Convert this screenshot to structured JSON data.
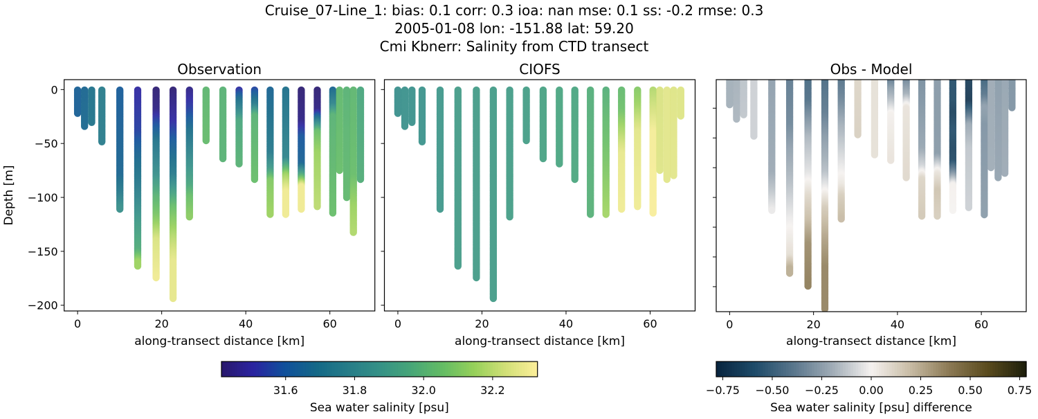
{
  "figure": {
    "title_lines": [
      "Cruise_07-Line_1: bias: 0.1  corr: 0.3  ioa: nan  mse: 0.1  ss: -0.2  rmse: 0.3",
      "2005-01-08 lon: -151.88 lat: 59.20",
      "Cmi Kbnerr: Salinity from CTD transect"
    ]
  },
  "chart_data": [
    {
      "type": "scatter",
      "title": "Observation",
      "xlabel": "along-transect distance [km]",
      "ylabel": "Depth [m]",
      "xlim": [
        -3.2,
        70.7
      ],
      "ylim": [
        -205.3,
        9.2
      ],
      "xticks": [
        0,
        20,
        40,
        60
      ],
      "xtick_labels": [
        "0",
        "20",
        "40",
        "60"
      ],
      "yticks": [
        0,
        -50,
        -100,
        -150,
        -200
      ],
      "ytick_labels": [
        "0",
        "−50",
        "−100",
        "−150",
        "−200"
      ],
      "colormap": "haline",
      "clim": [
        31.414,
        32.33
      ],
      "casts": [
        {
          "distance_km": 0.0,
          "profile": [
            [
              0,
              31.64
            ],
            [
              22.5,
              31.64
            ]
          ]
        },
        {
          "distance_km": 1.65,
          "profile": [
            [
              0,
              31.66
            ],
            [
              34.6,
              31.67
            ]
          ]
        },
        {
          "distance_km": 3.35,
          "profile": [
            [
              0,
              31.71
            ],
            [
              30.6,
              31.72
            ]
          ]
        },
        {
          "distance_km": 5.77,
          "profile": [
            [
              0,
              31.76
            ],
            [
              49,
              31.76
            ]
          ]
        },
        {
          "distance_km": 10.05,
          "profile": [
            [
              0,
              31.62
            ],
            [
              80,
              31.66
            ],
            [
              95,
              31.74
            ],
            [
              112,
              31.86
            ]
          ]
        },
        {
          "distance_km": 14.3,
          "profile": [
            [
              0,
              31.5
            ],
            [
              40,
              31.55
            ],
            [
              60,
              31.65
            ],
            [
              90,
              31.75
            ],
            [
              120,
              31.88
            ],
            [
              150,
              31.98
            ],
            [
              160,
              32.15
            ],
            [
              164,
              32.15
            ]
          ]
        },
        {
          "distance_km": 18.68,
          "profile": [
            [
              0,
              31.42
            ],
            [
              20,
              31.45
            ],
            [
              30,
              31.55
            ],
            [
              50,
              31.72
            ],
            [
              80,
              31.85
            ],
            [
              100,
              32.0
            ],
            [
              120,
              32.1
            ],
            [
              140,
              32.25
            ],
            [
              174.5,
              32.3
            ]
          ]
        },
        {
          "distance_km": 22.7,
          "profile": [
            [
              0,
              31.42
            ],
            [
              30,
              31.5
            ],
            [
              50,
              31.62
            ],
            [
              80,
              31.75
            ],
            [
              95,
              31.9
            ],
            [
              110,
              32.05
            ],
            [
              140,
              32.2
            ],
            [
              160,
              32.28
            ],
            [
              194,
              32.28
            ]
          ]
        },
        {
          "distance_km": 26.6,
          "profile": [
            [
              0,
              31.45
            ],
            [
              20,
              31.55
            ],
            [
              40,
              31.7
            ],
            [
              70,
              31.85
            ],
            [
              90,
              31.95
            ],
            [
              100,
              32.05
            ],
            [
              119,
              32.12
            ]
          ]
        },
        {
          "distance_km": 30.55,
          "profile": [
            [
              0,
              32.02
            ],
            [
              47.5,
              32.04
            ]
          ]
        },
        {
          "distance_km": 34.56,
          "profile": [
            [
              0,
              32.0
            ],
            [
              64.5,
              32.0
            ]
          ]
        },
        {
          "distance_km": 38.4,
          "profile": [
            [
              0,
              31.5
            ],
            [
              10,
              31.68
            ],
            [
              20,
              31.8
            ],
            [
              30,
              31.95
            ],
            [
              70,
              32.0
            ]
          ]
        },
        {
          "distance_km": 42.1,
          "profile": [
            [
              0,
              31.55
            ],
            [
              15,
              31.75
            ],
            [
              25,
              32.0
            ],
            [
              84,
              32.05
            ]
          ]
        },
        {
          "distance_km": 45.8,
          "profile": [
            [
              0,
              31.65
            ],
            [
              60,
              31.75
            ],
            [
              75,
              31.9
            ],
            [
              85,
              32.1
            ],
            [
              116,
              32.15
            ]
          ]
        },
        {
          "distance_km": 49.5,
          "profile": [
            [
              0,
              31.7
            ],
            [
              65,
              31.8
            ],
            [
              80,
              32.15
            ],
            [
              95,
              32.3
            ],
            [
              116.7,
              32.3
            ]
          ]
        },
        {
          "distance_km": 53.2,
          "profile": [
            [
              0,
              31.42
            ],
            [
              30,
              31.45
            ],
            [
              45,
              31.6
            ],
            [
              70,
              31.65
            ],
            [
              80,
              31.95
            ],
            [
              90,
              32.3
            ],
            [
              111,
              32.3
            ]
          ]
        },
        {
          "distance_km": 57.0,
          "profile": [
            [
              0,
              31.42
            ],
            [
              20,
              31.45
            ],
            [
              30,
              31.75
            ],
            [
              40,
              32.05
            ],
            [
              60,
              32.15
            ],
            [
              109,
              32.2
            ]
          ]
        },
        {
          "distance_km": 60.7,
          "profile": [
            [
              0,
              31.65
            ],
            [
              15,
              31.8
            ],
            [
              25,
              32.0
            ],
            [
              115,
              32.05
            ]
          ]
        },
        {
          "distance_km": 62.3,
          "profile": [
            [
              0,
              32.03
            ],
            [
              75.4,
              32.05
            ]
          ]
        },
        {
          "distance_km": 64.0,
          "profile": [
            [
              0,
              32.0
            ],
            [
              60,
              32.02
            ],
            [
              101,
              32.03
            ]
          ]
        },
        {
          "distance_km": 65.6,
          "profile": [
            [
              0,
              32.02
            ],
            [
              80,
              32.05
            ],
            [
              110,
              32.15
            ],
            [
              132.7,
              32.18
            ]
          ]
        },
        {
          "distance_km": 67.3,
          "profile": [
            [
              0,
              31.95
            ],
            [
              84,
              31.98
            ]
          ]
        }
      ]
    },
    {
      "type": "scatter",
      "title": "CIOFS",
      "xlabel": "along-transect distance [km]",
      "xlim": [
        -3.2,
        70.7
      ],
      "ylim": [
        -205.3,
        9.2
      ],
      "xticks": [
        0,
        20,
        40,
        60
      ],
      "xtick_labels": [
        "0",
        "20",
        "40",
        "60"
      ],
      "yticks": [
        0,
        -50,
        -100,
        -150,
        -200
      ],
      "colormap": "haline",
      "clim": [
        31.414,
        32.33
      ],
      "casts": [
        {
          "distance_km": 0.0,
          "profile": [
            [
              0,
              31.84
            ],
            [
              22.5,
              31.84
            ]
          ]
        },
        {
          "distance_km": 1.65,
          "profile": [
            [
              0,
              31.85
            ],
            [
              34.6,
              31.85
            ]
          ]
        },
        {
          "distance_km": 3.35,
          "profile": [
            [
              0,
              31.85
            ],
            [
              30.6,
              31.85
            ]
          ]
        },
        {
          "distance_km": 5.77,
          "profile": [
            [
              0,
              31.86
            ],
            [
              49,
              31.86
            ]
          ]
        },
        {
          "distance_km": 10.05,
          "profile": [
            [
              0,
              31.88
            ],
            [
              112,
              31.88
            ]
          ]
        },
        {
          "distance_km": 14.3,
          "profile": [
            [
              0,
              31.9
            ],
            [
              164,
              31.9
            ]
          ]
        },
        {
          "distance_km": 18.68,
          "profile": [
            [
              0,
              31.9
            ],
            [
              174.5,
              31.9
            ]
          ]
        },
        {
          "distance_km": 22.7,
          "profile": [
            [
              0,
              31.9
            ],
            [
              194,
              31.9
            ]
          ]
        },
        {
          "distance_km": 26.6,
          "profile": [
            [
              0,
              31.9
            ],
            [
              119,
              31.91
            ]
          ]
        },
        {
          "distance_km": 30.55,
          "profile": [
            [
              0,
              31.91
            ],
            [
              47.5,
              31.91
            ]
          ]
        },
        {
          "distance_km": 34.56,
          "profile": [
            [
              0,
              31.93
            ],
            [
              64.5,
              31.93
            ]
          ]
        },
        {
          "distance_km": 38.4,
          "profile": [
            [
              0,
              31.94
            ],
            [
              70,
              31.94
            ]
          ]
        },
        {
          "distance_km": 42.1,
          "profile": [
            [
              0,
              31.94
            ],
            [
              84,
              31.95
            ]
          ]
        },
        {
          "distance_km": 45.8,
          "profile": [
            [
              0,
              31.98
            ],
            [
              116,
              31.99
            ]
          ]
        },
        {
          "distance_km": 49.5,
          "profile": [
            [
              0,
              31.98
            ],
            [
              30,
              32.03
            ],
            [
              80,
              32.1
            ],
            [
              116.7,
              32.16
            ]
          ]
        },
        {
          "distance_km": 53.2,
          "profile": [
            [
              0,
              32.03
            ],
            [
              20,
              32.06
            ],
            [
              35,
              32.15
            ],
            [
              60,
              32.28
            ],
            [
              111,
              32.3
            ]
          ]
        },
        {
          "distance_km": 57.0,
          "profile": [
            [
              0,
              32.1
            ],
            [
              15,
              32.15
            ],
            [
              40,
              32.27
            ],
            [
              109,
              32.3
            ]
          ]
        },
        {
          "distance_km": 60.7,
          "profile": [
            [
              0,
              32.18
            ],
            [
              20,
              32.24
            ],
            [
              40,
              32.31
            ],
            [
              115,
              32.32
            ]
          ]
        },
        {
          "distance_km": 62.3,
          "profile": [
            [
              0,
              32.25
            ],
            [
              75.4,
              32.26
            ]
          ]
        },
        {
          "distance_km": 64.0,
          "profile": [
            [
              0,
              32.27
            ],
            [
              84,
              32.27
            ]
          ]
        },
        {
          "distance_km": 65.6,
          "profile": [
            [
              0,
              32.26
            ],
            [
              80,
              32.27
            ]
          ]
        },
        {
          "distance_km": 67.3,
          "profile": [
            [
              0,
              32.26
            ],
            [
              25,
              32.26
            ]
          ]
        }
      ]
    },
    {
      "type": "scatter",
      "title": "Obs - Model",
      "xlabel": "along-transect distance [km]",
      "xlim": [
        -3.2,
        70.7
      ],
      "ylim": [
        -196,
        -1
      ],
      "xticks": [
        0,
        20,
        40,
        60
      ],
      "xtick_labels": [
        "0",
        "20",
        "40",
        "60"
      ],
      "yticks": [
        -25,
        -50,
        -75,
        -100,
        -125,
        -150,
        -175
      ],
      "colormap": "diff",
      "clim": [
        -0.783,
        0.783
      ]
    }
  ],
  "colorbars": [
    {
      "label": "Sea water salinity [psu]",
      "colormap": "haline",
      "range": [
        31.414,
        32.33
      ],
      "ticks": [
        31.6,
        31.8,
        32.0,
        32.2
      ],
      "tick_labels": [
        "31.6",
        "31.8",
        "32.0",
        "32.2"
      ]
    },
    {
      "label": "Sea water salinity [psu] difference",
      "colormap": "diff",
      "range": [
        -0.783,
        0.783
      ],
      "ticks": [
        -0.75,
        -0.5,
        -0.25,
        0,
        0.25,
        0.5,
        0.75
      ],
      "tick_labels": [
        "−0.75",
        "−0.50",
        "−0.25",
        "0.00",
        "0.25",
        "0.50",
        "0.75"
      ]
    }
  ]
}
